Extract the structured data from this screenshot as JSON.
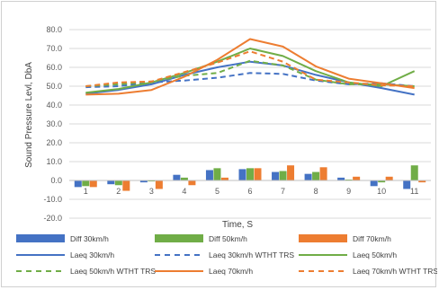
{
  "chart_data": {
    "type": "bar+line",
    "title": "",
    "xlabel": "Time, S",
    "ylabel": "Sound Pressure Levl, DbA",
    "ylim": [
      -20,
      80
    ],
    "ytick_step": 10,
    "ytick_labels": [
      "-20.0",
      "-10.0",
      "0.0",
      "10.0",
      "20.0",
      "30.0",
      "40.0",
      "50.0",
      "60.0",
      "70.0",
      "80.0"
    ],
    "categories": [
      "1",
      "2",
      "3",
      "4",
      "5",
      "6",
      "7",
      "8",
      "9",
      "10",
      "11"
    ],
    "grid": "horizontal",
    "legend_position": "bottom",
    "bar_series": [
      {
        "name": "Diff 30km/h",
        "color": "#4472C4",
        "values": [
          -3.5,
          -2.0,
          -1.0,
          3.0,
          5.5,
          6.0,
          4.5,
          3.5,
          1.5,
          -3.0,
          -4.5
        ]
      },
      {
        "name": "Diff 50km/h",
        "color": "#70AD47",
        "values": [
          -3.0,
          -2.5,
          -0.5,
          1.5,
          6.5,
          6.5,
          5.0,
          4.5,
          0.5,
          -1.0,
          8.0
        ]
      },
      {
        "name": "Diff 70km/h",
        "color": "#ED7D31",
        "values": [
          -3.5,
          -5.5,
          -4.5,
          -2.5,
          1.5,
          6.5,
          8.0,
          7.0,
          2.0,
          2.0,
          -1.0
        ]
      }
    ],
    "line_series": [
      {
        "name": "Laeq 30km/h",
        "color": "#4472C4",
        "dash": "solid",
        "values": [
          46.0,
          48.0,
          51.0,
          56.0,
          60.0,
          63.0,
          61.0,
          56.0,
          52.0,
          49.0,
          45.5
        ]
      },
      {
        "name": "Laeq 30km/h WTHT TRS",
        "color": "#4472C4",
        "dash": "dashed",
        "values": [
          49.5,
          50.0,
          52.0,
          53.0,
          54.5,
          57.0,
          56.5,
          53.0,
          51.0,
          51.5,
          50.0
        ]
      },
      {
        "name": "Laeq 50km/h",
        "color": "#70AD47",
        "dash": "solid",
        "values": [
          46.5,
          48.5,
          52.0,
          57.0,
          63.0,
          70.0,
          66.0,
          58.0,
          52.0,
          50.0,
          58.0
        ]
      },
      {
        "name": "Laeq 50km/h WTHT TRS",
        "color": "#70AD47",
        "dash": "dashed",
        "values": [
          50.0,
          51.0,
          52.5,
          55.5,
          57.0,
          63.5,
          61.0,
          53.5,
          51.0,
          51.0,
          50.0
        ]
      },
      {
        "name": "Laeq 70km/h",
        "color": "#ED7D31",
        "dash": "solid",
        "values": [
          45.5,
          46.0,
          48.0,
          55.0,
          64.0,
          75.0,
          71.0,
          60.5,
          54.0,
          51.5,
          49.0
        ]
      },
      {
        "name": "Laeq 70km/h WTHT TRS",
        "color": "#ED7D31",
        "dash": "dashed",
        "values": [
          50.0,
          52.0,
          52.5,
          57.5,
          62.5,
          68.5,
          63.0,
          53.5,
          52.0,
          50.5,
          50.0
        ]
      }
    ],
    "legend_order": [
      "Diff 30km/h",
      "Diff 50km/h",
      "Diff 70km/h",
      "Laeq 30km/h",
      "Laeq 30km/h WTHT TRS",
      "Laeq 50km/h",
      "Laeq 50km/h WTHT TRS",
      "Laeq 70km/h",
      "Laeq 70km/h WTHT TRS"
    ]
  }
}
